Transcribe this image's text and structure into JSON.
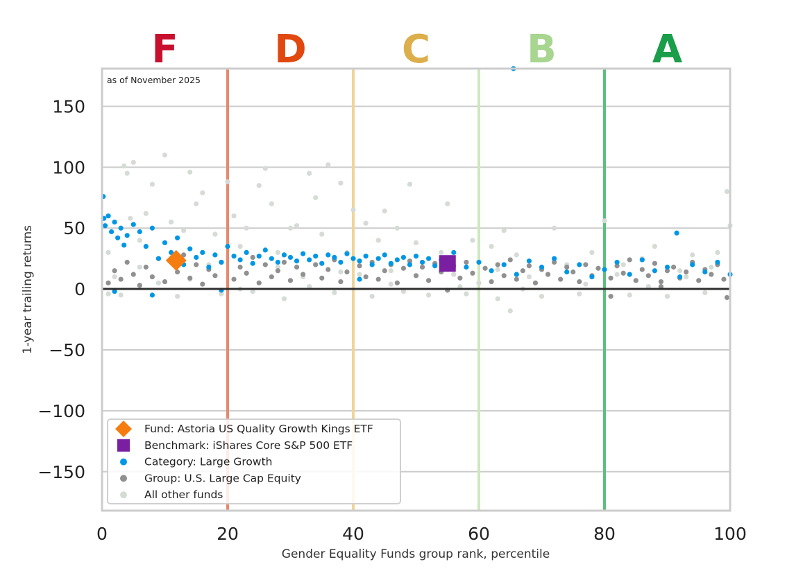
{
  "chart_data": {
    "type": "scatter",
    "xlabel": "Gender Equality Funds group rank, percentile",
    "ylabel": "1-year trailing returns",
    "xlim": [
      0,
      100
    ],
    "ylim": [
      -182,
      181
    ],
    "xticks": [
      0,
      20,
      40,
      60,
      80,
      100
    ],
    "yticks": [
      -150,
      -100,
      -50,
      0,
      50,
      100,
      150
    ],
    "grid": true,
    "annotation": "as of November 2025",
    "legend_position": "bottom-left",
    "grade_bands": [
      {
        "label": "F",
        "from": 0,
        "to": 20,
        "color": "#c8102e",
        "line_color": "#e8896e"
      },
      {
        "label": "D",
        "from": 20,
        "to": 40,
        "color": "#e0480f",
        "line_color": "#f0d49a"
      },
      {
        "label": "C",
        "from": 40,
        "to": 60,
        "color": "#dcae4c",
        "line_color": "#cde8bd"
      },
      {
        "label": "B",
        "from": 60,
        "to": 80,
        "color": "#a8d58f",
        "line_color": "#5bbf7f"
      },
      {
        "label": "A",
        "from": 80,
        "to": 100,
        "color": "#1a9e4a",
        "line_color": null
      }
    ],
    "series": [
      {
        "name": "All other funds",
        "marker": "circle",
        "color": "#d5dbd5",
        "points": [
          [
            1,
            30
          ],
          [
            2,
            10
          ],
          [
            3,
            -5
          ],
          [
            3.5,
            101
          ],
          [
            4,
            95
          ],
          [
            4.5,
            58
          ],
          [
            5,
            104
          ],
          [
            6,
            40
          ],
          [
            7,
            62
          ],
          [
            8,
            86
          ],
          [
            9,
            5
          ],
          [
            10,
            110
          ],
          [
            11,
            55
          ],
          [
            12,
            -6
          ],
          [
            13,
            48
          ],
          [
            14,
            96
          ],
          [
            15,
            70
          ],
          [
            16,
            79
          ],
          [
            17,
            20
          ],
          [
            18,
            45
          ],
          [
            19,
            -4
          ],
          [
            20,
            88
          ],
          [
            21,
            60
          ],
          [
            22,
            35
          ],
          [
            23,
            50
          ],
          [
            24,
            -2
          ],
          [
            25,
            85
          ],
          [
            26,
            99
          ],
          [
            27,
            70
          ],
          [
            28,
            30
          ],
          [
            29,
            -8
          ],
          [
            30,
            50
          ],
          [
            31,
            52
          ],
          [
            32,
            10
          ],
          [
            33,
            95
          ],
          [
            34,
            75
          ],
          [
            35,
            45
          ],
          [
            36,
            102
          ],
          [
            37,
            -3
          ],
          [
            38,
            87
          ],
          [
            39,
            30
          ],
          [
            40,
            65
          ],
          [
            41,
            12
          ],
          [
            42,
            54
          ],
          [
            43,
            -6
          ],
          [
            44,
            40
          ],
          [
            45,
            64
          ],
          [
            46,
            15
          ],
          [
            47,
            50
          ],
          [
            48,
            -2
          ],
          [
            49,
            86
          ],
          [
            50,
            38
          ],
          [
            52,
            -5
          ],
          [
            54,
            30
          ],
          [
            55,
            70
          ],
          [
            56,
            12
          ],
          [
            58,
            -4
          ],
          [
            59,
            40
          ],
          [
            60,
            5
          ],
          [
            62,
            35
          ],
          [
            63,
            -8
          ],
          [
            64,
            48
          ],
          [
            65,
            -18
          ],
          [
            66,
            28
          ],
          [
            68,
            10
          ],
          [
            70,
            -6
          ],
          [
            72,
            50
          ],
          [
            74,
            20
          ],
          [
            76,
            -4
          ],
          [
            78,
            30
          ],
          [
            80,
            56
          ],
          [
            82,
            12
          ],
          [
            84,
            -5
          ],
          [
            86,
            25
          ],
          [
            88,
            35
          ],
          [
            90,
            -6
          ],
          [
            92,
            15
          ],
          [
            94,
            28
          ],
          [
            96,
            -3
          ],
          [
            98,
            30
          ],
          [
            99.5,
            80
          ],
          [
            100,
            52
          ],
          [
            1,
            -4
          ],
          [
            6,
            18
          ],
          [
            14,
            8
          ],
          [
            22,
            0
          ],
          [
            28,
            18
          ],
          [
            33,
            2
          ],
          [
            38,
            14
          ],
          [
            46,
            4
          ],
          [
            53,
            20
          ],
          [
            57,
            2
          ],
          [
            63,
            16
          ],
          [
            67,
            0
          ],
          [
            71,
            12
          ],
          [
            77,
            4
          ],
          [
            83,
            20
          ],
          [
            87,
            2
          ],
          [
            93,
            10
          ],
          [
            97,
            18
          ]
        ]
      },
      {
        "name": "Group: U.S. Large Cap Equity",
        "marker": "circle",
        "color": "#909090",
        "points": [
          [
            1,
            5
          ],
          [
            2,
            15
          ],
          [
            3,
            8
          ],
          [
            4,
            22
          ],
          [
            5,
            12
          ],
          [
            6,
            3
          ],
          [
            7,
            18
          ],
          [
            8,
            10
          ],
          [
            9,
            25
          ],
          [
            10,
            6
          ],
          [
            12,
            14
          ],
          [
            13,
            28
          ],
          [
            14,
            9
          ],
          [
            15,
            20
          ],
          [
            16,
            4
          ],
          [
            17,
            16
          ],
          [
            18,
            11
          ],
          [
            19,
            22
          ],
          [
            21,
            8
          ],
          [
            22,
            18
          ],
          [
            23,
            13
          ],
          [
            24,
            26
          ],
          [
            25,
            5
          ],
          [
            26,
            20
          ],
          [
            27,
            10
          ],
          [
            28,
            15
          ],
          [
            29,
            22
          ],
          [
            30,
            7
          ],
          [
            31,
            18
          ],
          [
            32,
            12
          ],
          [
            34,
            20
          ],
          [
            35,
            9
          ],
          [
            36,
            16
          ],
          [
            37,
            24
          ],
          [
            38,
            6
          ],
          [
            39,
            14
          ],
          [
            41,
            19
          ],
          [
            42,
            10
          ],
          [
            43,
            22
          ],
          [
            44,
            8
          ],
          [
            45,
            15
          ],
          [
            46,
            20
          ],
          [
            47,
            5
          ],
          [
            48,
            17
          ],
          [
            49,
            23
          ],
          [
            50,
            11
          ],
          [
            51,
            18
          ],
          [
            52,
            7
          ],
          [
            53,
            21
          ],
          [
            54,
            14
          ],
          [
            56,
            19
          ],
          [
            57,
            9
          ],
          [
            58,
            22
          ],
          [
            59,
            13
          ],
          [
            61,
            17
          ],
          [
            62,
            6
          ],
          [
            63,
            20
          ],
          [
            64,
            11
          ],
          [
            65,
            24
          ],
          [
            66,
            8
          ],
          [
            67,
            15
          ],
          [
            68,
            19
          ],
          [
            69,
            5
          ],
          [
            70,
            16
          ],
          [
            71,
            12
          ],
          [
            72,
            22
          ],
          [
            73,
            8
          ],
          [
            74,
            18
          ],
          [
            75,
            14
          ],
          [
            76,
            6
          ],
          [
            77,
            20
          ],
          [
            78,
            11
          ],
          [
            79,
            17
          ],
          [
            81,
            9
          ],
          [
            82,
            19
          ],
          [
            83,
            13
          ],
          [
            84,
            24
          ],
          [
            85,
            7
          ],
          [
            86,
            16
          ],
          [
            87,
            11
          ],
          [
            88,
            21
          ],
          [
            89,
            6
          ],
          [
            90,
            15
          ],
          [
            91,
            18
          ],
          [
            92,
            9
          ],
          [
            93,
            14
          ],
          [
            94,
            22
          ],
          [
            95,
            7
          ],
          [
            96,
            16
          ],
          [
            97,
            12
          ],
          [
            98,
            20
          ],
          [
            99,
            8
          ],
          [
            99.5,
            -7
          ],
          [
            81,
            -6
          ],
          [
            89,
            2
          ],
          [
            55,
            -1
          ]
        ]
      },
      {
        "name": "Category: Large Growth",
        "marker": "circle",
        "color": "#0096e6",
        "points": [
          [
            0.2,
            76
          ],
          [
            0.3,
            58
          ],
          [
            0.5,
            52
          ],
          [
            1,
            60
          ],
          [
            1.5,
            47
          ],
          [
            2,
            55
          ],
          [
            2.5,
            42
          ],
          [
            3,
            50
          ],
          [
            3.5,
            36
          ],
          [
            4,
            44
          ],
          [
            5,
            53
          ],
          [
            6,
            47
          ],
          [
            7,
            35
          ],
          [
            8,
            50
          ],
          [
            9,
            25
          ],
          [
            10,
            38
          ],
          [
            11,
            30
          ],
          [
            12,
            42
          ],
          [
            13,
            20
          ],
          [
            14,
            33
          ],
          [
            15,
            26
          ],
          [
            16,
            30
          ],
          [
            17,
            18
          ],
          [
            18,
            28
          ],
          [
            19,
            22
          ],
          [
            20,
            35
          ],
          [
            21,
            27
          ],
          [
            22,
            24
          ],
          [
            23,
            30
          ],
          [
            24,
            21
          ],
          [
            25,
            27
          ],
          [
            26,
            32
          ],
          [
            27,
            25
          ],
          [
            28,
            22
          ],
          [
            29,
            28
          ],
          [
            30,
            26
          ],
          [
            31,
            23
          ],
          [
            32,
            29
          ],
          [
            33,
            24
          ],
          [
            34,
            27
          ],
          [
            35,
            21
          ],
          [
            36,
            28
          ],
          [
            37,
            26
          ],
          [
            38,
            22
          ],
          [
            39,
            29
          ],
          [
            40,
            25
          ],
          [
            41,
            23
          ],
          [
            42,
            27
          ],
          [
            43,
            20
          ],
          [
            44,
            25
          ],
          [
            45,
            28
          ],
          [
            46,
            21
          ],
          [
            47,
            24
          ],
          [
            48,
            26
          ],
          [
            49,
            20
          ],
          [
            50,
            27
          ],
          [
            51,
            22
          ],
          [
            52,
            25
          ],
          [
            53,
            19
          ],
          [
            54,
            24
          ],
          [
            56,
            30
          ],
          [
            58,
            18
          ],
          [
            60,
            22
          ],
          [
            62,
            15
          ],
          [
            64,
            20
          ],
          [
            65.5,
            181
          ],
          [
            66,
            12
          ],
          [
            68,
            23
          ],
          [
            70,
            18
          ],
          [
            72,
            25
          ],
          [
            74,
            14
          ],
          [
            76,
            20
          ],
          [
            78,
            10
          ],
          [
            80,
            16
          ],
          [
            82,
            22
          ],
          [
            84,
            12
          ],
          [
            86,
            24
          ],
          [
            88,
            15
          ],
          [
            90,
            18
          ],
          [
            91.5,
            46
          ],
          [
            92,
            10
          ],
          [
            94,
            20
          ],
          [
            96,
            14
          ],
          [
            98,
            22
          ],
          [
            100,
            12
          ],
          [
            2,
            -2
          ],
          [
            8,
            -5
          ],
          [
            19,
            -1
          ],
          [
            41,
            8
          ]
        ]
      },
      {
        "name": "Group: U.S. Large Cap Equity (legend)",
        "hidden": true,
        "points": []
      },
      {
        "name": "Benchmark: iShares Core S&P 500 ETF",
        "marker": "square",
        "color": "#7b1fa2",
        "points": [
          [
            55,
            21
          ]
        ]
      },
      {
        "name": "Fund: Astoria US Quality Growth Kings ETF",
        "marker": "diamond",
        "color": "#f57c0f",
        "points": [
          [
            11.8,
            23.5
          ]
        ]
      }
    ],
    "legend": [
      {
        "label": "Fund: Astoria US Quality Growth Kings ETF",
        "marker": "diamond",
        "color": "#f57c0f"
      },
      {
        "label": "Benchmark: iShares Core S&P 500 ETF",
        "marker": "square",
        "color": "#7b1fa2"
      },
      {
        "label": "Category: Large Growth",
        "marker": "circle",
        "color": "#0096e6"
      },
      {
        "label": "Group: U.S. Large Cap Equity",
        "marker": "circle",
        "color": "#909090"
      },
      {
        "label": "All other funds",
        "marker": "circle",
        "color": "#d5dbd5"
      }
    ]
  }
}
